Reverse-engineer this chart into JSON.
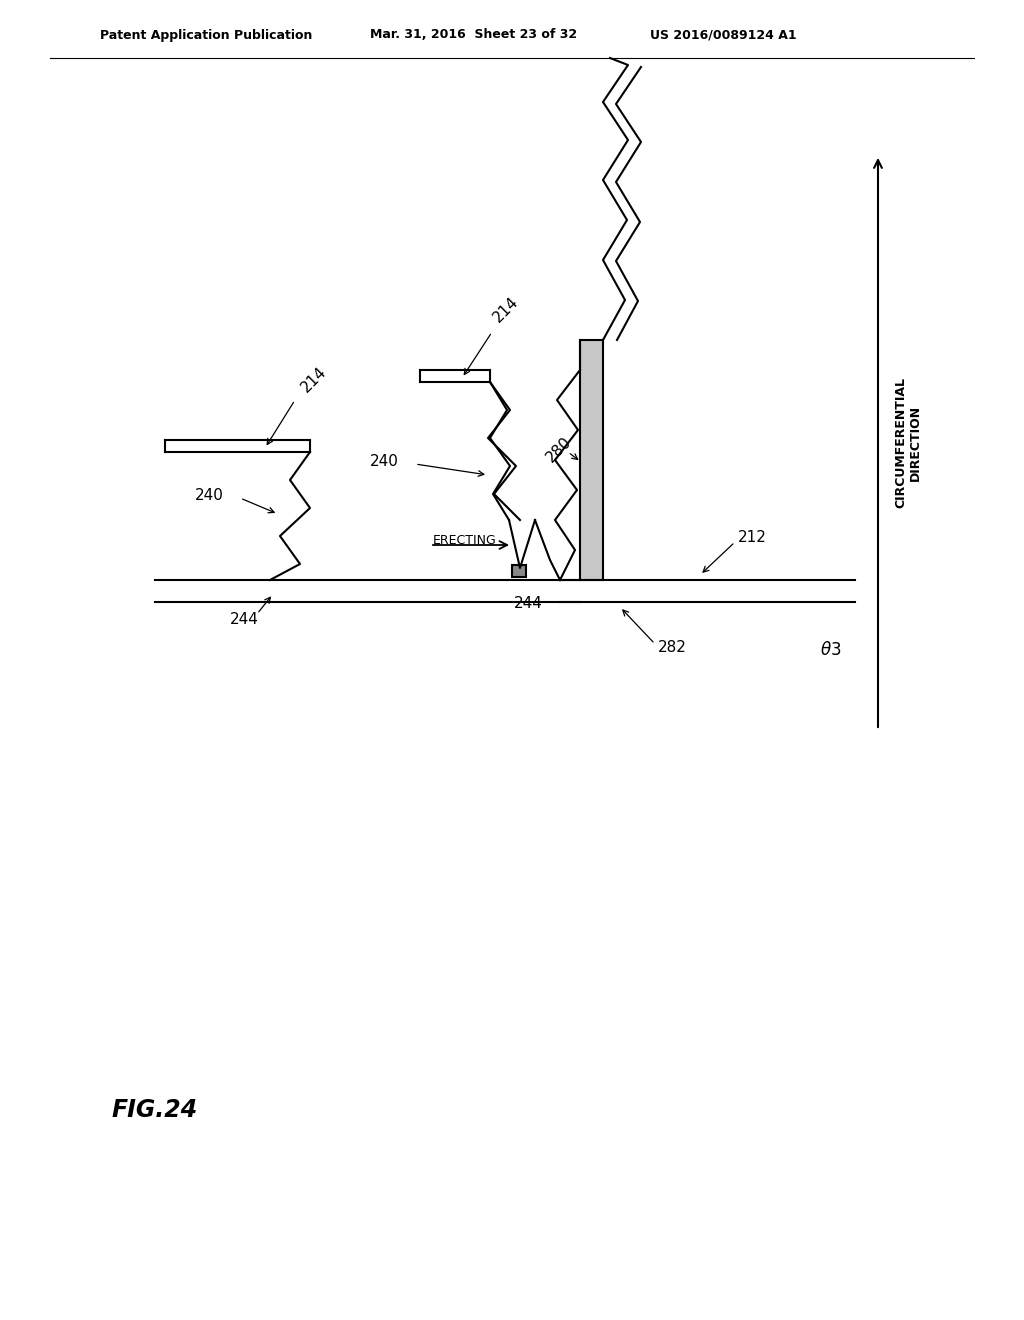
{
  "header_left": "Patent Application Publication",
  "header_mid": "Mar. 31, 2016  Sheet 23 of 32",
  "header_right": "US 2016/0089124 A1",
  "background": "#ffffff",
  "lc": "#000000",
  "lw": 1.5
}
